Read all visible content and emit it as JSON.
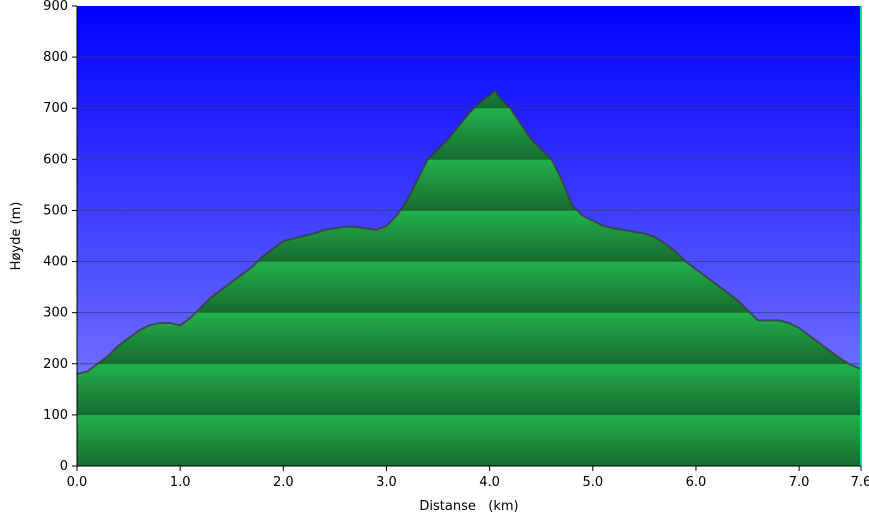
{
  "chart_data": {
    "type": "area",
    "title": "",
    "xlabel": "Distanse   (km)",
    "ylabel": "Høyde (m)",
    "xlim": [
      0,
      7.6
    ],
    "ylim": [
      0,
      900
    ],
    "x_ticks": [
      0,
      1,
      2,
      3,
      4,
      5,
      6,
      7,
      7.6
    ],
    "x_tick_labels": [
      "0.0",
      "1.0",
      "2.0",
      "3.0",
      "4.0",
      "5.0",
      "6.0",
      "7.0",
      "7.6"
    ],
    "y_ticks": [
      0,
      100,
      200,
      300,
      400,
      500,
      600,
      700,
      800,
      900
    ],
    "y_tick_labels": [
      "0",
      "100",
      "200",
      "300",
      "400",
      "500",
      "600",
      "700",
      "800",
      "900"
    ],
    "grid": true,
    "colors": {
      "sky_top": "#0000ff",
      "sky_bottom": "#8a8aff",
      "fill_light": "#22b24c",
      "fill_dark": "#176b2e",
      "outline": "#3a3a3a"
    },
    "series": [
      {
        "x": [
          0.0,
          0.1,
          0.2,
          0.3,
          0.4,
          0.5,
          0.6,
          0.7,
          0.8,
          0.9,
          1.0,
          1.1,
          1.2,
          1.3,
          1.4,
          1.5,
          1.6,
          1.7,
          1.8,
          1.9,
          2.0,
          2.1,
          2.2,
          2.3,
          2.4,
          2.5,
          2.6,
          2.7,
          2.8,
          2.9,
          3.0,
          3.1,
          3.2,
          3.3,
          3.4,
          3.5,
          3.6,
          3.7,
          3.8,
          3.9,
          4.0,
          4.05,
          4.1,
          4.2,
          4.3,
          4.4,
          4.5,
          4.6,
          4.7,
          4.8,
          4.9,
          5.0,
          5.1,
          5.2,
          5.3,
          5.4,
          5.5,
          5.6,
          5.7,
          5.8,
          5.9,
          6.0,
          6.1,
          6.2,
          6.3,
          6.4,
          6.5,
          6.6,
          6.7,
          6.8,
          6.9,
          7.0,
          7.1,
          7.2,
          7.3,
          7.4,
          7.5,
          7.6
        ],
        "values": [
          180,
          185,
          200,
          215,
          235,
          250,
          265,
          275,
          280,
          280,
          275,
          290,
          310,
          330,
          345,
          360,
          375,
          390,
          410,
          425,
          440,
          445,
          450,
          455,
          462,
          465,
          468,
          468,
          465,
          462,
          470,
          490,
          520,
          560,
          600,
          620,
          640,
          665,
          690,
          710,
          725,
          735,
          720,
          700,
          670,
          640,
          620,
          600,
          560,
          510,
          490,
          480,
          470,
          465,
          462,
          458,
          455,
          448,
          435,
          420,
          400,
          385,
          370,
          355,
          340,
          325,
          305,
          285,
          285,
          285,
          280,
          270,
          255,
          240,
          225,
          210,
          198,
          190
        ]
      }
    ]
  }
}
